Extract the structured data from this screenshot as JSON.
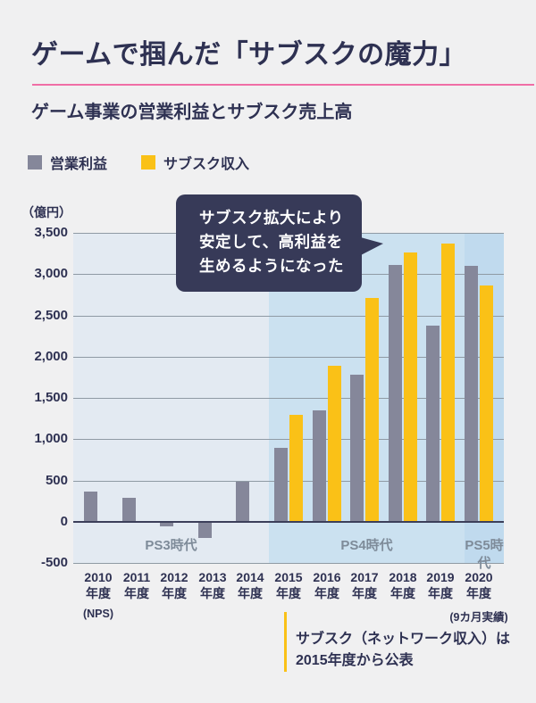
{
  "page": {
    "background": "#f0f0f1",
    "text_color": "#2e3152"
  },
  "header": {
    "title": "ゲームで掴んだ「サブスクの魔力」",
    "subtitle": "ゲーム事業の営業利益とサブスク売上高",
    "accent_color": "#f06ea6"
  },
  "legend": [
    {
      "label": "営業利益",
      "color": "#85879a"
    },
    {
      "label": "サブスク収入",
      "color": "#fac117"
    }
  ],
  "callout": {
    "lines": [
      "サブスク拡大により",
      "安定して、高利益を",
      "生めるようになった"
    ],
    "bg": "#373a58",
    "text_color": "#ffffff"
  },
  "chart_data": {
    "type": "bar",
    "unit_label": "（億円）",
    "ylim": [
      -500,
      3500
    ],
    "ytick_step": 500,
    "ytick_labels": [
      "3,500",
      "3,000",
      "2,500",
      "2,000",
      "1,500",
      "1,000",
      "500",
      "0",
      "-500"
    ],
    "grid": true,
    "legend_position": "top-left",
    "categories": [
      {
        "year": "2010",
        "suffix": "年度",
        "note": "(NPS)"
      },
      {
        "year": "2011",
        "suffix": "年度",
        "note": ""
      },
      {
        "year": "2012",
        "suffix": "年度",
        "note": ""
      },
      {
        "year": "2013",
        "suffix": "年度",
        "note": ""
      },
      {
        "year": "2014",
        "suffix": "年度",
        "note": ""
      },
      {
        "year": "2015",
        "suffix": "年度",
        "note": ""
      },
      {
        "year": "2016",
        "suffix": "年度",
        "note": ""
      },
      {
        "year": "2017",
        "suffix": "年度",
        "note": ""
      },
      {
        "year": "2018",
        "suffix": "年度",
        "note": ""
      },
      {
        "year": "2019",
        "suffix": "年度",
        "note": ""
      },
      {
        "year": "2020",
        "suffix": "年度",
        "note": "(9カ月実績)"
      }
    ],
    "series": [
      {
        "name": "営業利益",
        "color": "#85879a",
        "values": [
          360,
          290,
          -50,
          -190,
          480,
          890,
          1350,
          1780,
          3110,
          2380,
          3100
        ]
      },
      {
        "name": "サブスク収入",
        "color": "#fac117",
        "values": [
          null,
          null,
          null,
          null,
          null,
          1290,
          1890,
          2710,
          3260,
          3370,
          2860
        ]
      }
    ],
    "eras": [
      {
        "label": "PS3時代",
        "start_index": 0,
        "end_index": 4,
        "bg": "#e3eaf2"
      },
      {
        "label": "PS4時代",
        "start_index": 5,
        "end_index": 9,
        "bg": "#cbe1f0"
      },
      {
        "label": "PS5時代",
        "start_index": 10,
        "end_index": 10,
        "bg": "#c0daee"
      }
    ]
  },
  "footnote": {
    "lines": [
      "サブスク（ネットワーク収入）は",
      "2015年度から公表"
    ],
    "accent_color": "#fac117"
  }
}
